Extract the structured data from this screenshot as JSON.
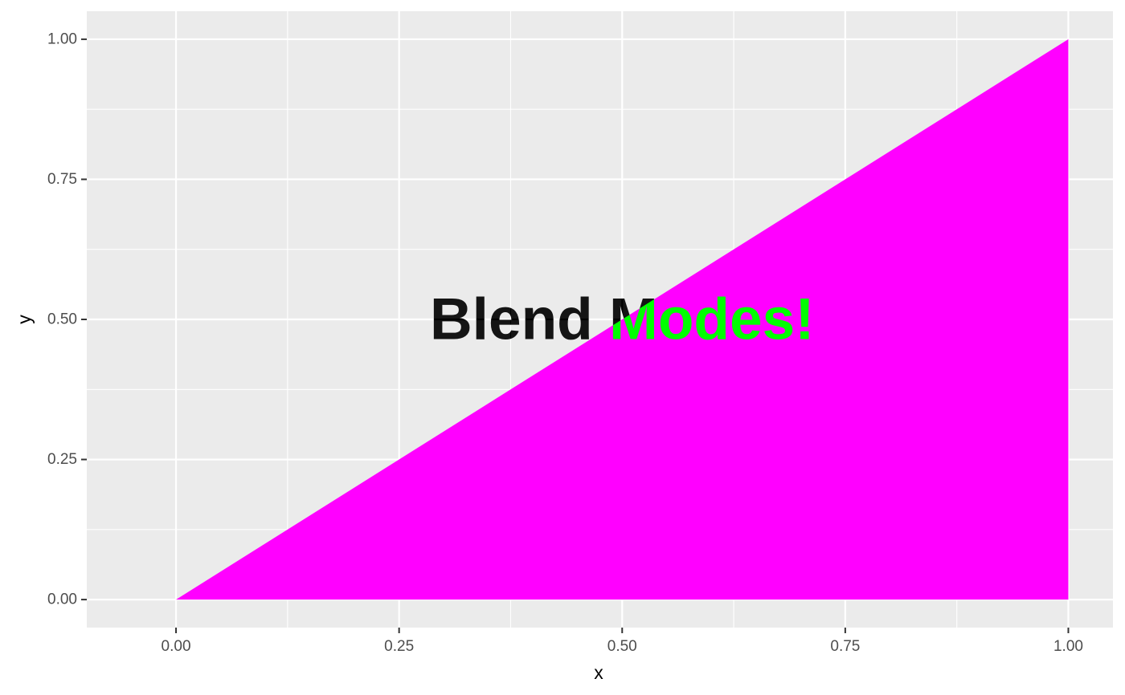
{
  "chart_data": {
    "type": "area",
    "title": "",
    "xlabel": "x",
    "ylabel": "y",
    "xlim": [
      -0.1,
      1.05
    ],
    "ylim": [
      -0.05,
      1.05
    ],
    "x_ticks": [
      "0.00",
      "0.25",
      "0.50",
      "0.75",
      "1.00"
    ],
    "y_ticks": [
      "0.00",
      "0.25",
      "0.50",
      "0.75",
      "1.00"
    ],
    "x_tick_values": [
      0,
      0.25,
      0.5,
      0.75,
      1
    ],
    "y_tick_values": [
      0,
      0.25,
      0.5,
      0.75,
      1
    ],
    "grid": true,
    "series": [
      {
        "x": [
          0,
          1,
          1
        ],
        "y": [
          0,
          1,
          0
        ],
        "color": "#ff00ff"
      }
    ],
    "annotations": [
      {
        "text": "Blend Modes!",
        "x": 0.5,
        "y": 0.5,
        "blend": "difference"
      }
    ],
    "colors": {
      "panel_background": "#ebebeb",
      "grid": "#ffffff",
      "fill": "#ff00ff"
    }
  }
}
